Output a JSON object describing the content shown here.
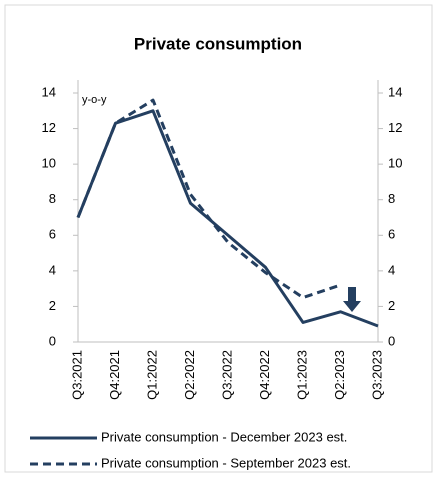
{
  "chart_data": {
    "type": "line",
    "title": "Private consumption",
    "y_label": "y-o-y",
    "categories": [
      "Q3:2021",
      "Q4:2021",
      "Q1:2022",
      "Q2:2022",
      "Q3:2022",
      "Q4:2022",
      "Q1:2023",
      "Q2:2023",
      "Q3:2023"
    ],
    "series": [
      {
        "name": "Private consumption - December 2023 est.",
        "color": "#243f60",
        "dash": false,
        "values": [
          7.0,
          12.3,
          13.0,
          7.8,
          6.0,
          4.2,
          1.1,
          1.7,
          0.9
        ]
      },
      {
        "name": "Private consumption - September 2023 est.",
        "color": "#243f60",
        "dash": true,
        "values": [
          7.0,
          12.3,
          13.6,
          8.3,
          5.6,
          3.9,
          2.5,
          3.2,
          null
        ]
      }
    ],
    "ylim": [
      0,
      14
    ],
    "yticks": [
      0,
      2,
      4,
      6,
      8,
      10,
      12,
      14
    ],
    "y2lim": [
      0,
      14
    ],
    "y2ticks": [
      0,
      2,
      4,
      6,
      8,
      10,
      12,
      14
    ],
    "grid": false
  }
}
